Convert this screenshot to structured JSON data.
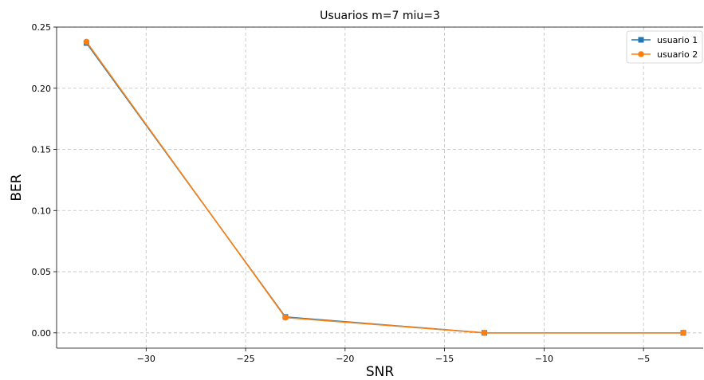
{
  "chart_data": {
    "type": "line",
    "title": "Usuarios m=7 miu=3",
    "xlabel": "SNR",
    "ylabel": "BER",
    "xlim": [
      -34.5,
      -2.0
    ],
    "ylim": [
      -0.0125,
      0.25
    ],
    "xticks": [
      -30,
      -25,
      -20,
      -15,
      -10,
      -5
    ],
    "xtick_labels": [
      "−30",
      "−25",
      "−20",
      "−15",
      "−10",
      "−5"
    ],
    "yticks": [
      0.0,
      0.05,
      0.1,
      0.15,
      0.2,
      0.25
    ],
    "ytick_labels": [
      "0.00",
      "0.05",
      "0.10",
      "0.15",
      "0.20",
      "0.25"
    ],
    "grid": true,
    "legend_position": "top-right",
    "series": [
      {
        "name": "usuario 1",
        "color": "#1f77b4",
        "marker": "square",
        "x": [
          -33,
          -23,
          -13,
          -3
        ],
        "y": [
          0.237,
          0.013,
          0.0,
          0.0
        ]
      },
      {
        "name": "usuario 2",
        "color": "#ff7f0e",
        "marker": "circle",
        "x": [
          -33,
          -23,
          -13,
          -3
        ],
        "y": [
          0.238,
          0.0125,
          0.0,
          0.0
        ]
      }
    ]
  }
}
